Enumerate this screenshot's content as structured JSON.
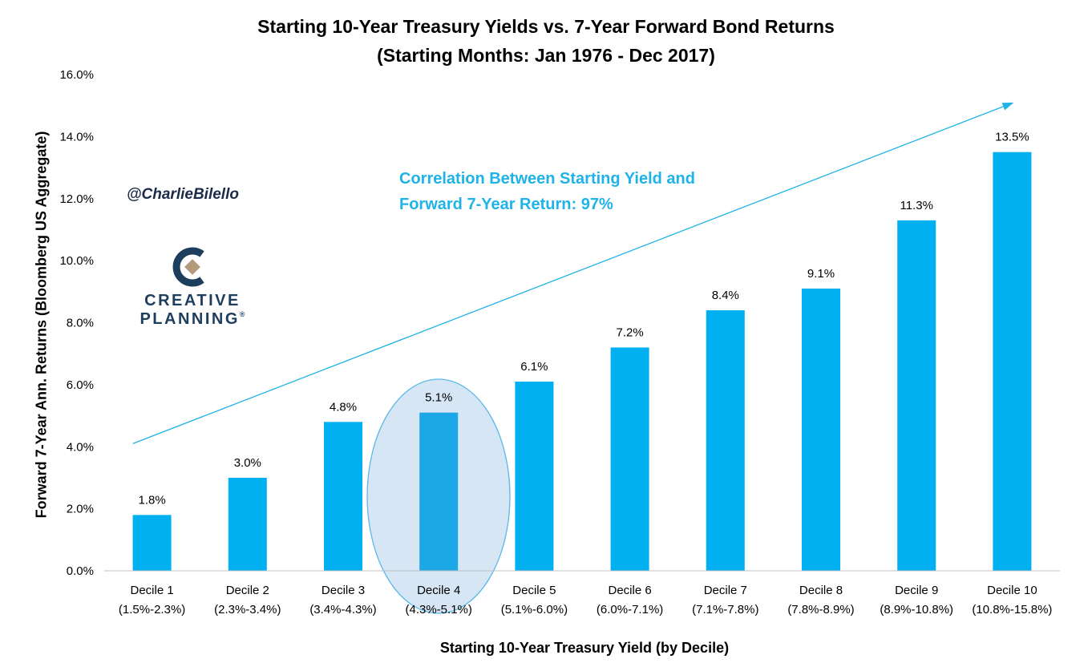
{
  "header": {
    "title_line1": "Starting 10-Year Treasury Yields vs. 7-Year Forward Bond Returns",
    "title_line2": "(Starting Months: Jan 1976 - Dec 2017)"
  },
  "annotations": {
    "correlation_line1": "Correlation Between Starting Yield and",
    "correlation_line2": "Forward 7-Year Return: 97%",
    "handle": "@CharlieBilello",
    "highlighted_category": "Decile 4"
  },
  "logo": {
    "line1": "CREATIVE",
    "line2": "PLANNING",
    "mark": "®",
    "icon": "creative-planning-c-icon",
    "colors": {
      "navy": "#1e3e5e",
      "tan": "#b39a7a"
    }
  },
  "colors": {
    "bar": "#00b0f0",
    "highlight_bar": "#1ca7e6",
    "highlight_ellipse_fill": "#d6e6f5",
    "highlight_ellipse_stroke": "#5bb8e8",
    "trend_arrow": "#1fb3e8",
    "axis": "#bfbfbf"
  },
  "chart_data": {
    "type": "bar",
    "title": "Starting 10-Year Treasury Yields vs. 7-Year Forward Bond Returns",
    "subtitle": "(Starting Months: Jan 1976 - Dec 2017)",
    "xlabel": "Starting 10-Year Treasury Yield (by Decile)",
    "ylabel": "Forward 7-Year Ann. Returns (Bloomberg US Aggregate)",
    "ylim": [
      0,
      16
    ],
    "yticks": [
      0,
      2,
      4,
      6,
      8,
      10,
      12,
      14,
      16
    ],
    "ytick_labels": [
      "0.0%",
      "2.0%",
      "4.0%",
      "6.0%",
      "8.0%",
      "10.0%",
      "12.0%",
      "14.0%",
      "16.0%"
    ],
    "grid": false,
    "legend": "none",
    "categories": [
      "Decile 1",
      "Decile 2",
      "Decile 3",
      "Decile 4",
      "Decile 5",
      "Decile 6",
      "Decile 7",
      "Decile 8",
      "Decile 9",
      "Decile 10"
    ],
    "category_ranges": [
      "(1.5%-2.3%)",
      "(2.3%-3.4%)",
      "(3.4%-4.3%)",
      "(4.3%-5.1%)",
      "(5.1%-6.0%)",
      "(6.0%-7.1%)",
      "(7.1%-7.8%)",
      "(7.8%-8.9%)",
      "(8.9%-10.8%)",
      "(10.8%-15.8%)"
    ],
    "values": [
      1.8,
      3.0,
      4.8,
      5.1,
      6.1,
      7.2,
      8.4,
      9.1,
      11.3,
      13.5
    ],
    "data_labels": [
      "1.8%",
      "3.0%",
      "4.8%",
      "5.1%",
      "6.1%",
      "7.2%",
      "8.4%",
      "9.1%",
      "11.3%",
      "13.5%"
    ],
    "trend_arrow": {
      "from": [
        "Decile 1",
        4.1
      ],
      "to": [
        "Decile 10",
        15.1
      ]
    }
  }
}
